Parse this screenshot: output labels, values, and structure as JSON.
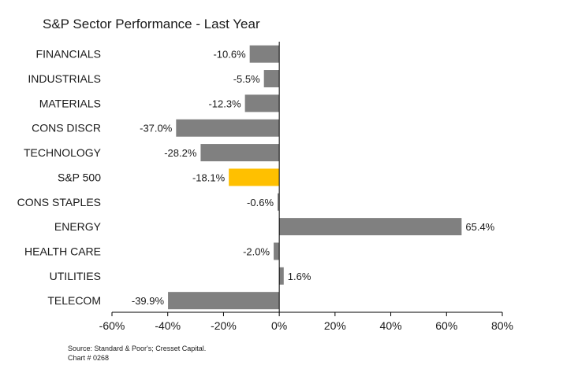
{
  "chart_data": {
    "type": "bar",
    "orientation": "horizontal",
    "title": "S&P Sector Performance - Last Year",
    "categories": [
      "FINANCIALS",
      "INDUSTRIALS",
      "MATERIALS",
      "CONS DISCR",
      "TECHNOLOGY",
      "S&P 500",
      "CONS STAPLES",
      "ENERGY",
      "HEALTH CARE",
      "UTILITIES",
      "TELECOM"
    ],
    "values": [
      -10.6,
      -5.5,
      -12.3,
      -37.0,
      -28.2,
      -18.1,
      -0.6,
      65.4,
      -2.0,
      1.6,
      -39.9
    ],
    "value_labels": [
      "-10.6%",
      "-5.5%",
      "-12.3%",
      "-37.0%",
      "-28.2%",
      "-18.1%",
      "-0.6%",
      "65.4%",
      "-2.0%",
      "1.6%",
      "-39.9%"
    ],
    "highlight_category": "S&P 500",
    "colors": {
      "bar": "#808080",
      "highlight": "#ffc000",
      "text": "#1a1a1a",
      "axis": "#000000"
    },
    "xlim": [
      -60,
      80
    ],
    "xticks": [
      -60,
      -40,
      -20,
      0,
      20,
      40,
      60,
      80
    ],
    "xtick_labels": [
      "-60%",
      "-40%",
      "-20%",
      "0%",
      "20%",
      "40%",
      "60%",
      "80%"
    ],
    "xlabel": "",
    "ylabel": "",
    "grid": false,
    "legend": "none"
  },
  "footnote": {
    "source": "Source: Standard & Poor's; Cresset Capital.",
    "chart_id": "Chart # 0268"
  }
}
